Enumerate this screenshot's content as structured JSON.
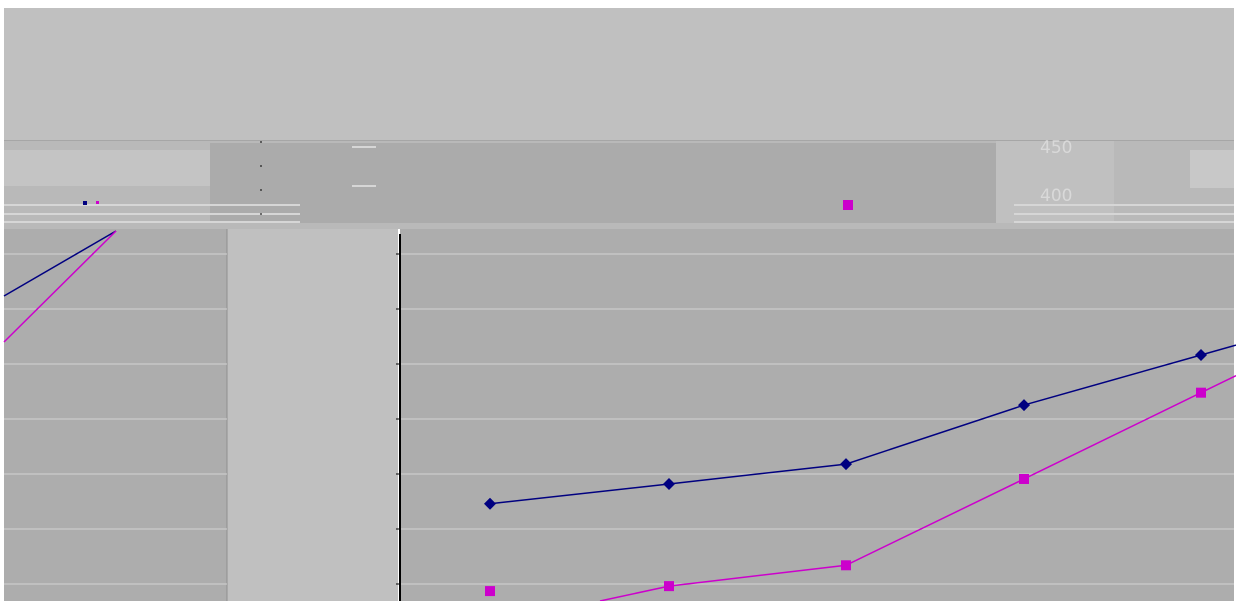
{
  "window": {
    "header_text": "",
    "top_ticks": [
      "450",
      "400"
    ]
  },
  "colors": {
    "page_bg": "#ffffff",
    "header_bg": "#c0c0c0",
    "plot_bg": "#adadad",
    "strip_bg": "#c0c0c0",
    "gridline": "#d3d3d3",
    "series_blue": "#000080",
    "series_magenta": "#cc00cc"
  },
  "chart_data": {
    "type": "line",
    "title": "",
    "xlabel": "",
    "ylabel": "",
    "x": [
      1,
      2,
      3,
      4,
      5
    ],
    "grid": true,
    "series": [
      {
        "values": [
          19.6,
          23.6,
          27.6,
          39.5,
          49.6
        ],
        "marker": "diamond",
        "color": "#000080"
      },
      {
        "values": [
          2.0,
          3.0,
          7.2,
          24.6,
          42.0
        ],
        "marker": "square",
        "color": "#cc00cc"
      }
    ],
    "ylim": [
      0,
      75
    ]
  }
}
